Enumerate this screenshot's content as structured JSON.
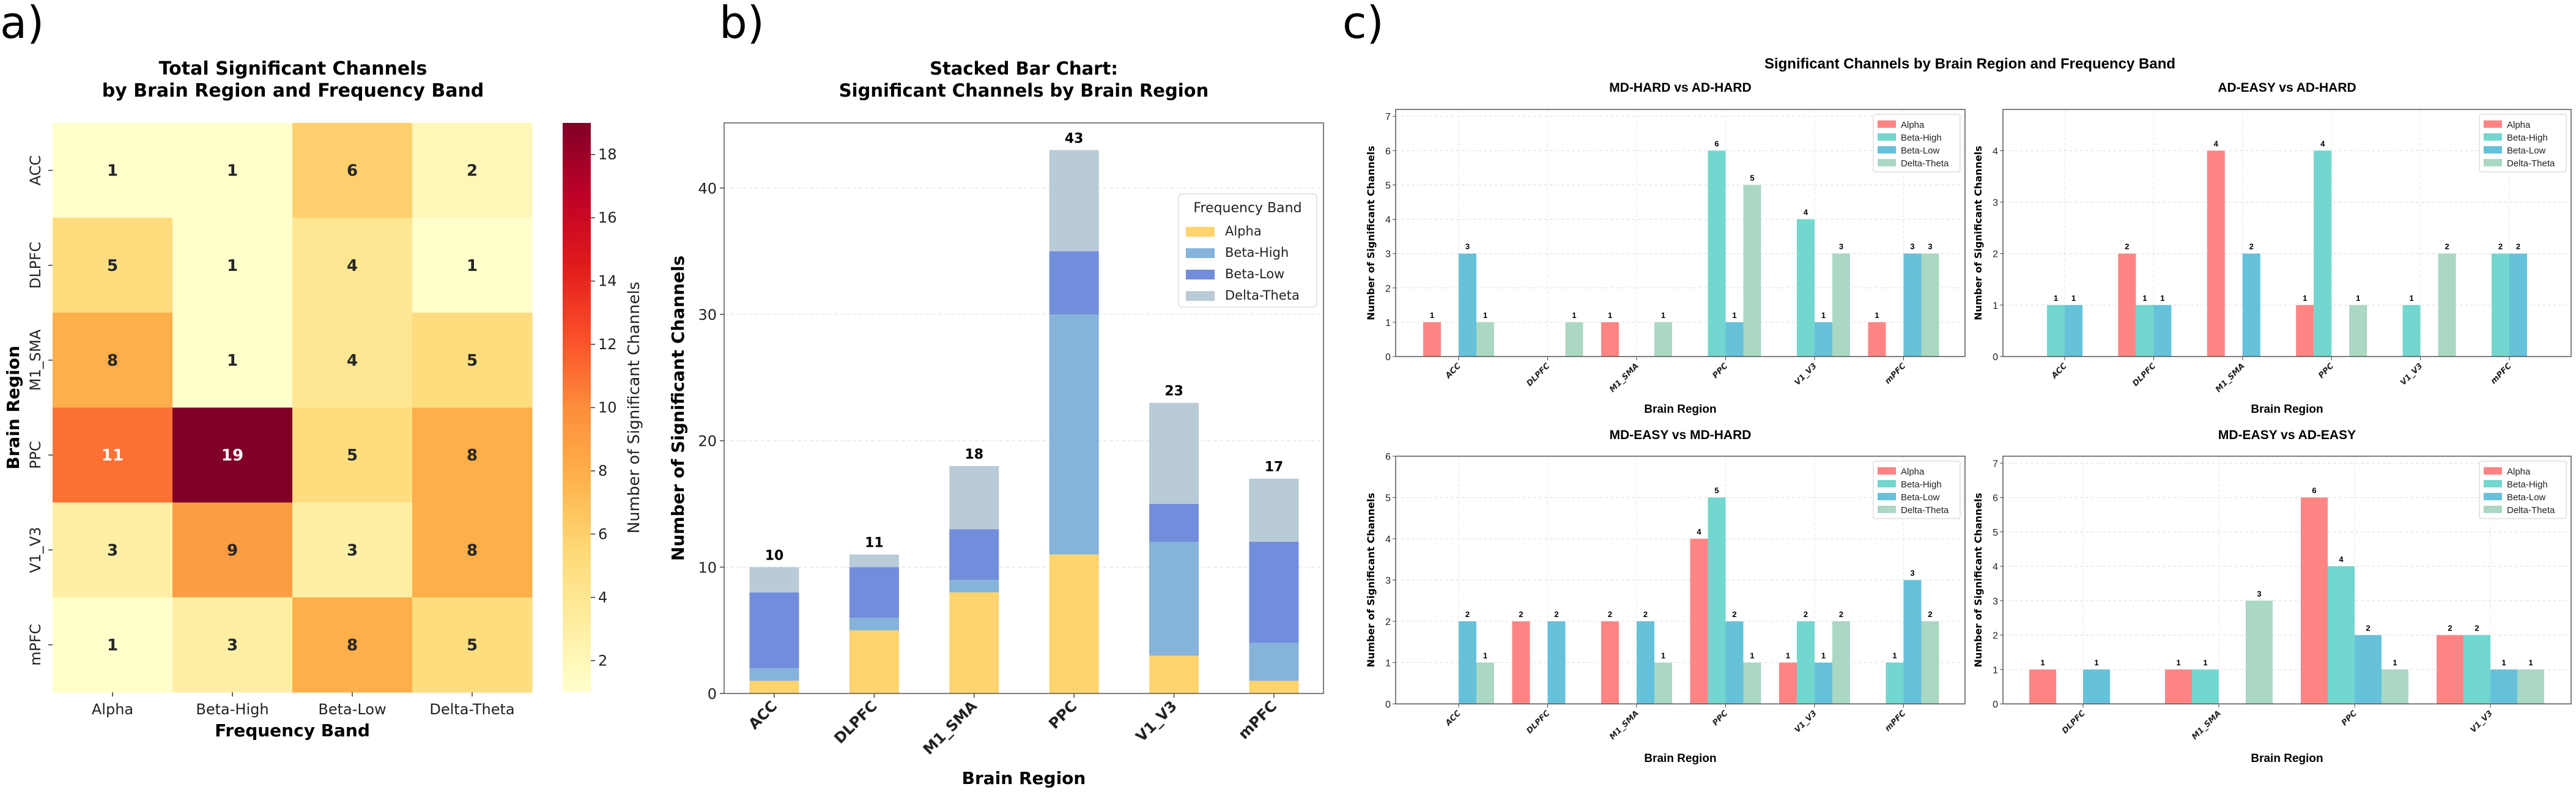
{
  "chart_data": [
    {
      "type": "heatmap",
      "panel_label": "a)",
      "title": [
        "Total Significant Channels",
        "by Brain Region and Frequency Band"
      ],
      "xlabel": "Frequency Band",
      "ylabel": "Brain Region",
      "x_categories": [
        "Alpha",
        "Beta-High",
        "Beta-Low",
        "Delta-Theta"
      ],
      "y_categories": [
        "ACC",
        "DLPFC",
        "M1_SMA",
        "PPC",
        "V1_V3",
        "mPFC"
      ],
      "values": [
        [
          1,
          1,
          6,
          2
        ],
        [
          5,
          1,
          4,
          1
        ],
        [
          8,
          1,
          4,
          5
        ],
        [
          11,
          19,
          5,
          8
        ],
        [
          3,
          9,
          3,
          8
        ],
        [
          1,
          3,
          8,
          5
        ]
      ],
      "colormap": "YlOrRd",
      "colorbar": {
        "label": "Number of Significant Channels",
        "range": [
          1,
          19
        ],
        "ticks": [
          "2",
          "4",
          "6",
          "8",
          "10",
          "12",
          "14",
          "16",
          "18"
        ]
      }
    },
    {
      "type": "bar",
      "stacked": true,
      "panel_label": "b)",
      "title": [
        "Stacked Bar Chart:",
        "Significant Channels by Brain Region"
      ],
      "xlabel": "Brain Region",
      "ylabel": "Number of Significant Channels",
      "categories": [
        "ACC",
        "DLPFC",
        "M1_SMA",
        "PPC",
        "V1_V3",
        "mPFC"
      ],
      "series": [
        {
          "name": "Alpha",
          "color": "#FFD36E",
          "values": [
            1,
            5,
            8,
            11,
            3,
            1
          ]
        },
        {
          "name": "Beta-High",
          "color": "#85B3D9",
          "values": [
            1,
            1,
            1,
            19,
            9,
            3
          ]
        },
        {
          "name": "Beta-Low",
          "color": "#728DDB",
          "values": [
            6,
            4,
            4,
            5,
            3,
            8
          ]
        },
        {
          "name": "Delta-Theta",
          "color": "#B9CBD7",
          "values": [
            2,
            1,
            5,
            8,
            8,
            5
          ]
        }
      ],
      "totals": [
        "10",
        "11",
        "18",
        "43",
        "23",
        "17"
      ],
      "ylim": [
        0,
        45
      ],
      "yticks": [
        "0",
        "10",
        "20",
        "30",
        "40"
      ],
      "grid": true,
      "legend": {
        "title": "Frequency Band",
        "placement": "upper-right"
      }
    },
    {
      "type": "bar",
      "grouped": true,
      "panel_label": "c)",
      "suptitle": "Significant Channels by Brain Region and Frequency Band",
      "band_colors": {
        "Alpha": "#FF8585",
        "Beta-High": "#72D7CE",
        "Beta-Low": "#66C1DA",
        "Delta-Theta": "#AAD8C2"
      },
      "subplots": [
        {
          "title": "MD-HARD vs AD-HARD",
          "xlabel": "Brain Region",
          "ylabel": "Number of Significant Channels",
          "categories": [
            "ACC",
            "DLPFC",
            "M1_SMA",
            "PPC",
            "V1_V3",
            "mPFC"
          ],
          "series": [
            {
              "name": "Alpha",
              "values": [
                1,
                0,
                1,
                0,
                0,
                1
              ]
            },
            {
              "name": "Beta-High",
              "values": [
                0,
                0,
                0,
                6,
                4,
                0
              ]
            },
            {
              "name": "Beta-Low",
              "values": [
                3,
                0,
                0,
                1,
                1,
                3
              ]
            },
            {
              "name": "Delta-Theta",
              "values": [
                1,
                1,
                1,
                5,
                3,
                3
              ]
            }
          ],
          "ylim": [
            0,
            7.2
          ],
          "yticks": [
            "0",
            "1",
            "2",
            "3",
            "4",
            "5",
            "6",
            "7"
          ],
          "legend": "upper-right"
        },
        {
          "title": "AD-EASY vs AD-HARD",
          "xlabel": "Brain Region",
          "ylabel": "Number of Significant Channels",
          "categories": [
            "ACC",
            "DLPFC",
            "M1_SMA",
            "PPC",
            "V1_V3",
            "mPFC"
          ],
          "series": [
            {
              "name": "Alpha",
              "values": [
                0,
                2,
                4,
                1,
                0,
                0
              ]
            },
            {
              "name": "Beta-High",
              "values": [
                1,
                1,
                0,
                4,
                1,
                2
              ]
            },
            {
              "name": "Beta-Low",
              "values": [
                1,
                1,
                2,
                0,
                0,
                2
              ]
            },
            {
              "name": "Delta-Theta",
              "values": [
                0,
                0,
                0,
                1,
                2,
                0
              ]
            }
          ],
          "ylim": [
            0,
            4.8
          ],
          "yticks": [
            "0",
            "1",
            "2",
            "3",
            "4"
          ],
          "legend": "upper-right"
        },
        {
          "title": "MD-EASY vs MD-HARD",
          "xlabel": "Brain Region",
          "ylabel": "Number of Significant Channels",
          "categories": [
            "ACC",
            "DLPFC",
            "M1_SMA",
            "PPC",
            "V1_V3",
            "mPFC"
          ],
          "series": [
            {
              "name": "Alpha",
              "values": [
                0,
                2,
                2,
                4,
                1,
                0
              ]
            },
            {
              "name": "Beta-High",
              "values": [
                0,
                0,
                0,
                5,
                2,
                1
              ]
            },
            {
              "name": "Beta-Low",
              "values": [
                2,
                2,
                2,
                2,
                1,
                3
              ]
            },
            {
              "name": "Delta-Theta",
              "values": [
                1,
                0,
                1,
                1,
                2,
                2
              ]
            }
          ],
          "ylim": [
            0,
            6
          ],
          "yticks": [
            "0",
            "1",
            "2",
            "3",
            "4",
            "5",
            "6"
          ],
          "legend": "upper-right"
        },
        {
          "title": "MD-EASY vs AD-EASY",
          "xlabel": "Brain Region",
          "ylabel": "Number of Significant Channels",
          "categories": [
            "DLPFC",
            "M1_SMA",
            "PPC",
            "V1_V3"
          ],
          "series": [
            {
              "name": "Alpha",
              "values": [
                1,
                1,
                6,
                2
              ]
            },
            {
              "name": "Beta-High",
              "values": [
                0,
                1,
                4,
                2
              ]
            },
            {
              "name": "Beta-Low",
              "values": [
                1,
                0,
                2,
                1
              ]
            },
            {
              "name": "Delta-Theta",
              "values": [
                0,
                3,
                1,
                1
              ]
            }
          ],
          "ylim": [
            0,
            7.2
          ],
          "yticks": [
            "0",
            "1",
            "2",
            "3",
            "4",
            "5",
            "6",
            "7"
          ],
          "legend": "upper-right"
        }
      ]
    }
  ]
}
